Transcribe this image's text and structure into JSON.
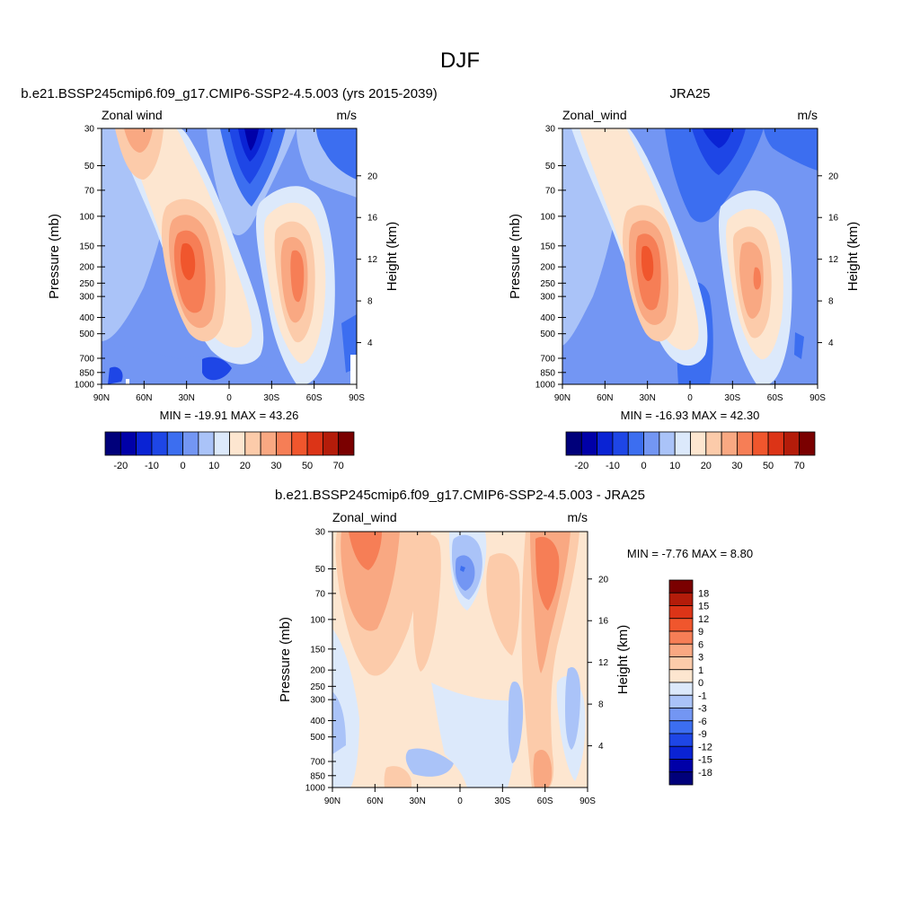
{
  "figure": {
    "title": "DJF"
  },
  "colors": {
    "model_scale": [
      "#00007a",
      "#0000a8",
      "#0a23d4",
      "#1e46e6",
      "#3c6ef0",
      "#7396f3",
      "#aac3f8",
      "#dce9fb",
      "#fde6d0",
      "#fccbaa",
      "#f9a882",
      "#f67e56",
      "#f0562d",
      "#dc3417",
      "#b41c0a",
      "#7a0000"
    ],
    "diff_scale": [
      "#00007a",
      "#0000a8",
      "#0a23d4",
      "#1e46e6",
      "#3c6ef0",
      "#7396f3",
      "#aac3f8",
      "#dce9fb",
      "#fde6d0",
      "#fccbaa",
      "#f9a882",
      "#f67e56",
      "#f0562d",
      "#dc3417",
      "#b41c0a",
      "#7a0000"
    ]
  },
  "chart_data": [
    {
      "type": "heatmap",
      "title": "b.e21.BSSP245cmip6.f09_g17.CMIP6-SSP2-4.5.003 (yrs 2015-2039)",
      "left_label": "Zonal wind",
      "units": "m/s",
      "ylabel": "Pressure (mb)",
      "ylabel_right": "Height (km)",
      "x_ticks": [
        "90N",
        "60N",
        "30N",
        "0",
        "30S",
        "60S",
        "90S"
      ],
      "x_range": [
        90,
        -90
      ],
      "y_ticks": [
        30,
        50,
        70,
        100,
        150,
        200,
        250,
        300,
        400,
        500,
        700,
        850,
        1000
      ],
      "y_range_mb": [
        30,
        1000
      ],
      "y_log_scale": true,
      "height_ticks_km": [
        4,
        8,
        12,
        16,
        20
      ],
      "stats_text": "MIN = -19.91  MAX =  43.26",
      "min": -19.91,
      "max": 43.26,
      "colorbar_labels": [
        "-20",
        "-10",
        "0",
        "10",
        "20",
        "30",
        "50",
        "70"
      ],
      "features": [
        {
          "kind": "jet_max",
          "lat": 30,
          "p_mb": 200,
          "value": 43.26
        },
        {
          "kind": "jet_max",
          "lat": -50,
          "p_mb": 250,
          "value": 30
        },
        {
          "kind": "jet_max",
          "lat": 65,
          "p_mb": 30,
          "value": 25
        },
        {
          "kind": "easterly_min",
          "lat": -10,
          "p_mb": 35,
          "value": -19.91
        }
      ]
    },
    {
      "type": "heatmap",
      "title": "JRA25",
      "left_label": "Zonal_wind",
      "units": "m/s",
      "ylabel": "Pressure (mb)",
      "ylabel_right": "Height (km)",
      "x_ticks": [
        "90N",
        "60N",
        "30N",
        "0",
        "30S",
        "60S",
        "90S"
      ],
      "x_range": [
        90,
        -90
      ],
      "y_ticks": [
        30,
        50,
        70,
        100,
        150,
        200,
        250,
        300,
        400,
        500,
        700,
        850,
        1000
      ],
      "y_range_mb": [
        30,
        1000
      ],
      "y_log_scale": true,
      "height_ticks_km": [
        4,
        8,
        12,
        16,
        20
      ],
      "stats_text": "MIN = -16.93  MAX =  42.30",
      "min": -16.93,
      "max": 42.3,
      "colorbar_labels": [
        "-20",
        "-10",
        "0",
        "10",
        "20",
        "30",
        "50",
        "70"
      ],
      "features": [
        {
          "kind": "jet_max",
          "lat": 30,
          "p_mb": 200,
          "value": 42.3
        },
        {
          "kind": "jet_max",
          "lat": -50,
          "p_mb": 250,
          "value": 30
        },
        {
          "kind": "easterly_min",
          "lat": -15,
          "p_mb": 35,
          "value": -16.93
        }
      ]
    },
    {
      "type": "heatmap",
      "title": "b.e21.BSSP245cmip6.f09_g17.CMIP6-SSP2-4.5.003 - JRA25",
      "left_label": "Zonal_wind",
      "units": "m/s",
      "ylabel": "Pressure (mb)",
      "ylabel_right": "Height (km)",
      "x_ticks": [
        "90N",
        "60N",
        "30N",
        "0",
        "30S",
        "60S",
        "90S"
      ],
      "x_range": [
        90,
        -90
      ],
      "y_ticks": [
        30,
        50,
        70,
        100,
        150,
        200,
        250,
        300,
        400,
        500,
        700,
        850,
        1000
      ],
      "y_range_mb": [
        30,
        1000
      ],
      "y_log_scale": true,
      "height_ticks_km": [
        4,
        8,
        12,
        16,
        20
      ],
      "stats_text": "MIN =  -7.76  MAX =   8.80",
      "min": -7.76,
      "max": 8.8,
      "colorbar_labels": [
        "18",
        "15",
        "12",
        "9",
        "6",
        "3",
        "1",
        "0",
        "-1",
        "-3",
        "-6",
        "-9",
        "-12",
        "-15",
        "-18"
      ],
      "features": [
        {
          "kind": "positive",
          "lat": -55,
          "p_mb": 100,
          "value": 8.8
        },
        {
          "kind": "positive",
          "lat": 70,
          "p_mb": 40,
          "value": 6
        },
        {
          "kind": "negative",
          "lat": 0,
          "p_mb": 50,
          "value": -7.76
        }
      ]
    }
  ]
}
